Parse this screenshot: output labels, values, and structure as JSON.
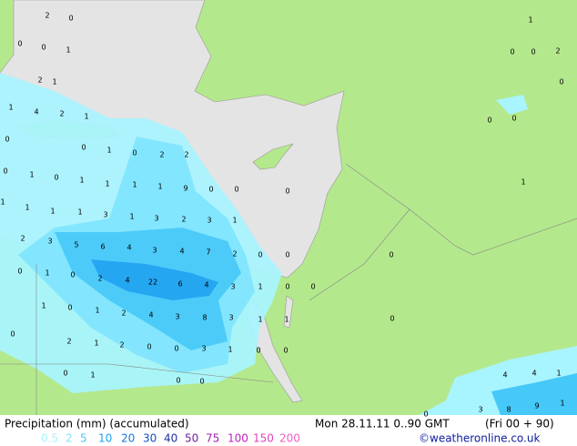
{
  "header": {
    "title": "Precipitation (mm) (accumulated)",
    "datetime": "Mon 28.11.11 0..90 GMT",
    "run": "(Fri 00 + 90)",
    "credit": "©weatheronline.co.uk"
  },
  "legend": [
    {
      "label": "0.5",
      "color": "#a8f4ff"
    },
    {
      "label": "2",
      "color": "#7ee4ff"
    },
    {
      "label": "5",
      "color": "#46c8f8"
    },
    {
      "label": "10",
      "color": "#1ea0f0"
    },
    {
      "label": "20",
      "color": "#1478e0"
    },
    {
      "label": "30",
      "color": "#1450c8"
    },
    {
      "label": "40",
      "color": "#2030a0"
    },
    {
      "label": "50",
      "color": "#7020a0"
    },
    {
      "label": "75",
      "color": "#a020b0"
    },
    {
      "label": "100",
      "color": "#c020c0"
    },
    {
      "label": "150",
      "color": "#e040c0"
    },
    {
      "label": "200",
      "color": "#f060c8"
    }
  ],
  "map_labels": [
    "2",
    "0",
    "0",
    "0",
    "1",
    "2",
    "1",
    "1",
    "4",
    "2",
    "1",
    "0",
    "0",
    "1",
    "0",
    "2",
    "2",
    "0",
    "1",
    "0",
    "1",
    "1",
    "1",
    "1",
    "9",
    "0",
    "0",
    "0",
    "1",
    "1",
    "1",
    "1",
    "3",
    "1",
    "3",
    "2",
    "3",
    "1",
    "2",
    "3",
    "5",
    "6",
    "4",
    "3",
    "4",
    "7",
    "2",
    "0",
    "0",
    "0",
    "1",
    "0",
    "2",
    "4",
    "22",
    "6",
    "4",
    "3",
    "1",
    "0",
    "0",
    "1",
    "0",
    "1",
    "2",
    "4",
    "3",
    "8",
    "3",
    "1",
    "1",
    "0",
    "2",
    "1",
    "2",
    "0",
    "0",
    "3",
    "1",
    "0",
    "0",
    "0",
    "1",
    "0",
    "0",
    "0",
    "0",
    "0",
    "0",
    "1",
    "0",
    "0",
    "2",
    "0",
    "1",
    "4",
    "4",
    "1",
    "3",
    "8",
    "9",
    "1",
    "0"
  ]
}
